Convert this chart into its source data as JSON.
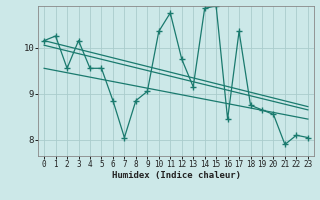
{
  "xlabel": "Humidex (Indice chaleur)",
  "bg_color": "#cce8e8",
  "grid_color": "#aacccc",
  "line_color": "#1a7a6e",
  "xlim": [
    -0.5,
    23.5
  ],
  "ylim": [
    7.65,
    10.9
  ],
  "yticks": [
    8,
    9,
    10
  ],
  "xticks": [
    0,
    1,
    2,
    3,
    4,
    5,
    6,
    7,
    8,
    9,
    10,
    11,
    12,
    13,
    14,
    15,
    16,
    17,
    18,
    19,
    20,
    21,
    22,
    23
  ],
  "series1_x": [
    0,
    1,
    2,
    3,
    4,
    5,
    6,
    7,
    8,
    9,
    10,
    11,
    12,
    13,
    14,
    15,
    16,
    17,
    18,
    19,
    20,
    21,
    22,
    23
  ],
  "series1_y": [
    10.15,
    10.25,
    9.55,
    10.15,
    9.55,
    9.55,
    8.85,
    8.05,
    8.85,
    9.05,
    10.35,
    10.75,
    9.75,
    9.15,
    10.85,
    10.9,
    8.45,
    10.35,
    8.75,
    8.65,
    8.55,
    7.9,
    8.1,
    8.05
  ],
  "trend1_x": [
    0,
    23
  ],
  "trend1_y": [
    10.15,
    8.72
  ],
  "trend2_x": [
    0,
    23
  ],
  "trend2_y": [
    10.05,
    8.65
  ],
  "trend3_x": [
    0,
    23
  ],
  "trend3_y": [
    9.55,
    8.45
  ]
}
